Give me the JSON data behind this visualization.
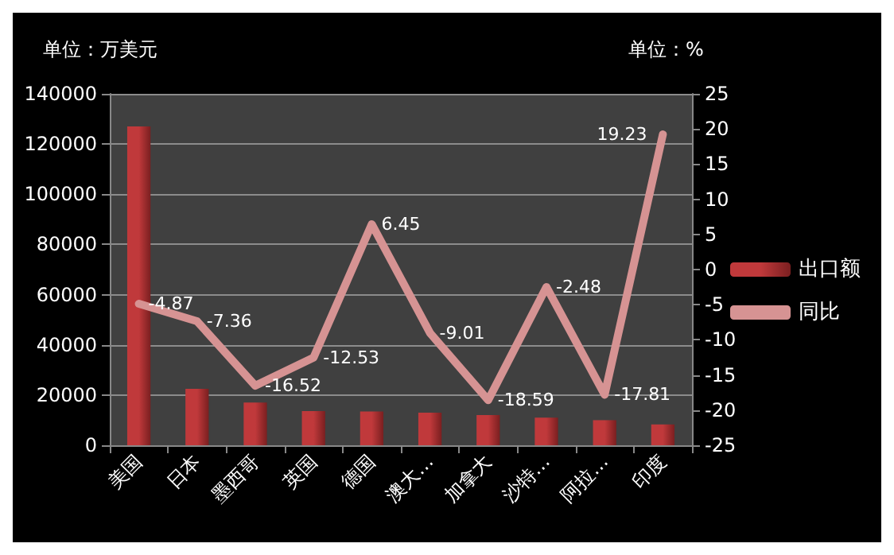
{
  "chart_data": {
    "type": "bar",
    "ylabel": "单位：万美元",
    "y2label": "单位：%",
    "categories": [
      "美国",
      "日本",
      "墨西哥",
      "英国",
      "德国",
      "澳大…",
      "加拿大",
      "沙特…",
      "阿拉…",
      "印度"
    ],
    "series": [
      {
        "name": "出口额",
        "color": "#c0393b",
        "values": [
          127000,
          22500,
          17000,
          13600,
          13500,
          13000,
          12000,
          11000,
          10000,
          8300
        ]
      },
      {
        "name": "同比",
        "type": "line",
        "axis": "y2",
        "color": "#d69393",
        "values": [
          -4.87,
          -7.36,
          -16.52,
          -12.53,
          6.45,
          -9.01,
          -18.59,
          -2.48,
          -17.81,
          19.23
        ],
        "data_labels": true
      }
    ],
    "ylim": [
      0,
      140000
    ],
    "yticks": [
      0,
      20000,
      40000,
      60000,
      80000,
      100000,
      120000,
      140000
    ],
    "y2lim": [
      -25,
      25
    ],
    "y2ticks": [
      -25,
      -20,
      -15,
      -10,
      -5,
      0,
      5,
      10,
      15,
      20,
      25
    ],
    "grid": "y",
    "legend": "right",
    "marker": "none",
    "line_style": "solid"
  }
}
